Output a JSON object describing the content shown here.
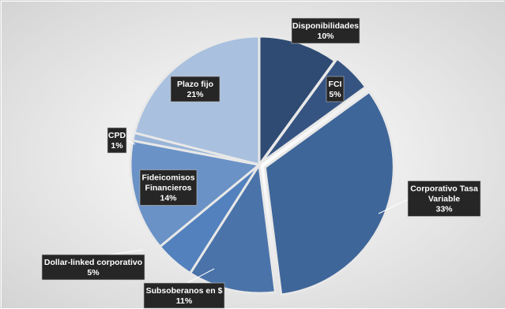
{
  "chart_data": {
    "type": "pie",
    "title": "",
    "start_angle_deg": 0,
    "direction": "clockwise",
    "slices": [
      {
        "label": "Disponibilidades",
        "value": 10,
        "value_label": "10%",
        "color": "#2f4b73"
      },
      {
        "label": "FCI",
        "value": 5,
        "value_label": "5%",
        "color": "#365482"
      },
      {
        "label": "Corporativo Tasa Variable",
        "value": 33,
        "value_label": "33%",
        "color": "#3f6699"
      },
      {
        "label": "Subsoberanos en $",
        "value": 11,
        "value_label": "11%",
        "color": "#4a73a9"
      },
      {
        "label": "Dollar-linked corporativo",
        "value": 5,
        "value_label": "5%",
        "color": "#5281bd"
      },
      {
        "label": "Fideicomisos Financieros",
        "value": 14,
        "value_label": "14%",
        "color": "#6a92c6"
      },
      {
        "label": "CPD",
        "value": 1,
        "value_label": "1%",
        "color": "#99b5d8"
      },
      {
        "label": "Plazo fijo",
        "value": 21,
        "value_label": "21%",
        "color": "#a9c0de"
      }
    ],
    "legend": "none",
    "background": "radial-gradient light grey"
  }
}
